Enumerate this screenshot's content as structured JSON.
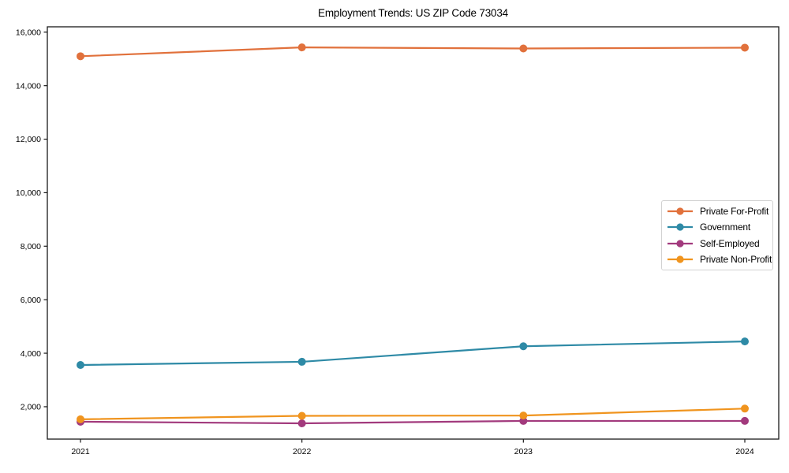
{
  "chart_data": {
    "type": "line",
    "title": "Employment Trends: US ZIP Code 73034",
    "xlabel": "",
    "ylabel": "",
    "x_tick_labels": [
      "2021",
      "2022",
      "2023",
      "2024"
    ],
    "y_ticks": [
      2000,
      4000,
      6000,
      8000,
      10000,
      12000,
      14000,
      16000
    ],
    "y_tick_labels": [
      "2,000",
      "4,000",
      "6,000",
      "8,000",
      "10,000",
      "12,000",
      "14,000",
      "16,000"
    ],
    "ylim": [
      790,
      16200
    ],
    "grid": false,
    "legend_position": "center-right",
    "marker": "circle",
    "series": [
      {
        "name": "Private For-Profit",
        "color": "#e1713c",
        "values": [
          15100,
          15430,
          15390,
          15420
        ]
      },
      {
        "name": "Government",
        "color": "#2e8aa6",
        "values": [
          3560,
          3680,
          4260,
          4440
        ]
      },
      {
        "name": "Self-Employed",
        "color": "#a23a7d",
        "values": [
          1440,
          1380,
          1470,
          1470
        ]
      },
      {
        "name": "Private Non-Profit",
        "color": "#f0941e",
        "values": [
          1530,
          1660,
          1670,
          1930
        ]
      }
    ],
    "frame_color": "#1a1a1a"
  }
}
